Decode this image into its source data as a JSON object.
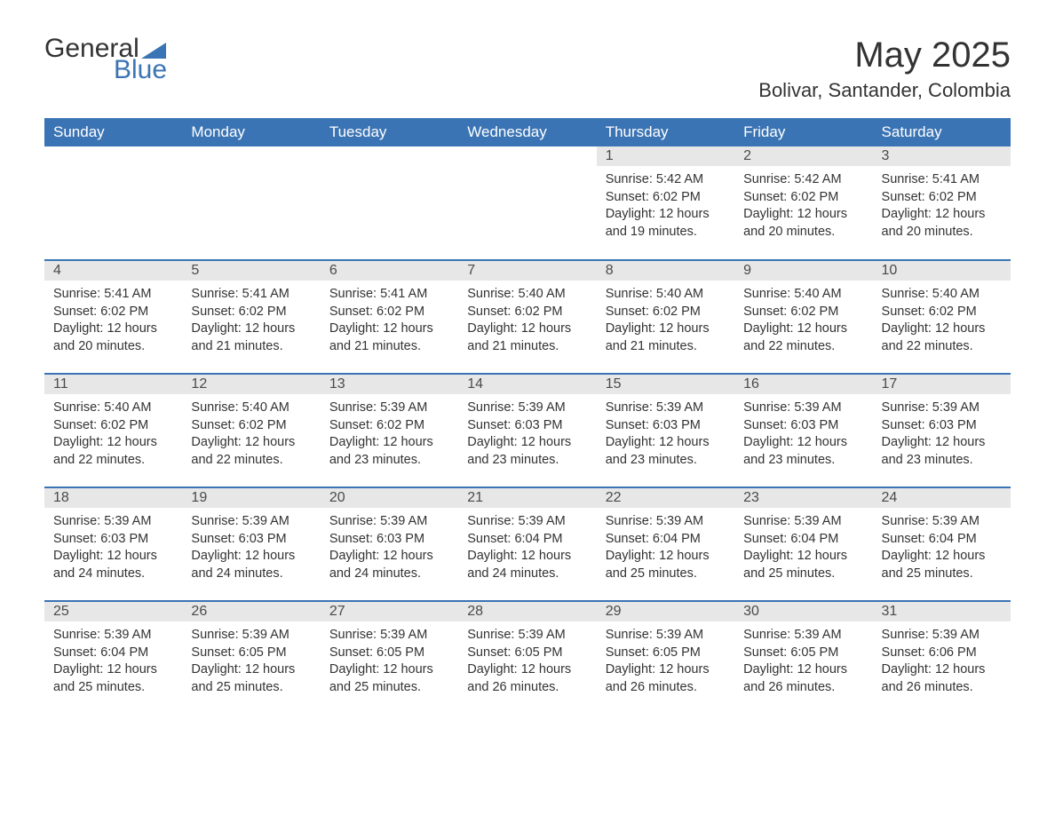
{
  "logo": {
    "part1": "General",
    "part2": "Blue"
  },
  "title": "May 2025",
  "location": "Bolivar, Santander, Colombia",
  "colors": {
    "header_bg": "#3b74b4",
    "header_text": "#ffffff",
    "daynum_bg": "#e7e7e7",
    "body_text": "#333333",
    "rule": "#3b74b4"
  },
  "daysOfWeek": [
    "Sunday",
    "Monday",
    "Tuesday",
    "Wednesday",
    "Thursday",
    "Friday",
    "Saturday"
  ],
  "labels": {
    "sunrise": "Sunrise:",
    "sunset": "Sunset:",
    "daylight": "Daylight:"
  },
  "weeks": [
    [
      null,
      null,
      null,
      null,
      {
        "d": "1",
        "sunrise": "5:42 AM",
        "sunset": "6:02 PM",
        "daylight": "12 hours and 19 minutes."
      },
      {
        "d": "2",
        "sunrise": "5:42 AM",
        "sunset": "6:02 PM",
        "daylight": "12 hours and 20 minutes."
      },
      {
        "d": "3",
        "sunrise": "5:41 AM",
        "sunset": "6:02 PM",
        "daylight": "12 hours and 20 minutes."
      }
    ],
    [
      {
        "d": "4",
        "sunrise": "5:41 AM",
        "sunset": "6:02 PM",
        "daylight": "12 hours and 20 minutes."
      },
      {
        "d": "5",
        "sunrise": "5:41 AM",
        "sunset": "6:02 PM",
        "daylight": "12 hours and 21 minutes."
      },
      {
        "d": "6",
        "sunrise": "5:41 AM",
        "sunset": "6:02 PM",
        "daylight": "12 hours and 21 minutes."
      },
      {
        "d": "7",
        "sunrise": "5:40 AM",
        "sunset": "6:02 PM",
        "daylight": "12 hours and 21 minutes."
      },
      {
        "d": "8",
        "sunrise": "5:40 AM",
        "sunset": "6:02 PM",
        "daylight": "12 hours and 21 minutes."
      },
      {
        "d": "9",
        "sunrise": "5:40 AM",
        "sunset": "6:02 PM",
        "daylight": "12 hours and 22 minutes."
      },
      {
        "d": "10",
        "sunrise": "5:40 AM",
        "sunset": "6:02 PM",
        "daylight": "12 hours and 22 minutes."
      }
    ],
    [
      {
        "d": "11",
        "sunrise": "5:40 AM",
        "sunset": "6:02 PM",
        "daylight": "12 hours and 22 minutes."
      },
      {
        "d": "12",
        "sunrise": "5:40 AM",
        "sunset": "6:02 PM",
        "daylight": "12 hours and 22 minutes."
      },
      {
        "d": "13",
        "sunrise": "5:39 AM",
        "sunset": "6:02 PM",
        "daylight": "12 hours and 23 minutes."
      },
      {
        "d": "14",
        "sunrise": "5:39 AM",
        "sunset": "6:03 PM",
        "daylight": "12 hours and 23 minutes."
      },
      {
        "d": "15",
        "sunrise": "5:39 AM",
        "sunset": "6:03 PM",
        "daylight": "12 hours and 23 minutes."
      },
      {
        "d": "16",
        "sunrise": "5:39 AM",
        "sunset": "6:03 PM",
        "daylight": "12 hours and 23 minutes."
      },
      {
        "d": "17",
        "sunrise": "5:39 AM",
        "sunset": "6:03 PM",
        "daylight": "12 hours and 23 minutes."
      }
    ],
    [
      {
        "d": "18",
        "sunrise": "5:39 AM",
        "sunset": "6:03 PM",
        "daylight": "12 hours and 24 minutes."
      },
      {
        "d": "19",
        "sunrise": "5:39 AM",
        "sunset": "6:03 PM",
        "daylight": "12 hours and 24 minutes."
      },
      {
        "d": "20",
        "sunrise": "5:39 AM",
        "sunset": "6:03 PM",
        "daylight": "12 hours and 24 minutes."
      },
      {
        "d": "21",
        "sunrise": "5:39 AM",
        "sunset": "6:04 PM",
        "daylight": "12 hours and 24 minutes."
      },
      {
        "d": "22",
        "sunrise": "5:39 AM",
        "sunset": "6:04 PM",
        "daylight": "12 hours and 25 minutes."
      },
      {
        "d": "23",
        "sunrise": "5:39 AM",
        "sunset": "6:04 PM",
        "daylight": "12 hours and 25 minutes."
      },
      {
        "d": "24",
        "sunrise": "5:39 AM",
        "sunset": "6:04 PM",
        "daylight": "12 hours and 25 minutes."
      }
    ],
    [
      {
        "d": "25",
        "sunrise": "5:39 AM",
        "sunset": "6:04 PM",
        "daylight": "12 hours and 25 minutes."
      },
      {
        "d": "26",
        "sunrise": "5:39 AM",
        "sunset": "6:05 PM",
        "daylight": "12 hours and 25 minutes."
      },
      {
        "d": "27",
        "sunrise": "5:39 AM",
        "sunset": "6:05 PM",
        "daylight": "12 hours and 25 minutes."
      },
      {
        "d": "28",
        "sunrise": "5:39 AM",
        "sunset": "6:05 PM",
        "daylight": "12 hours and 26 minutes."
      },
      {
        "d": "29",
        "sunrise": "5:39 AM",
        "sunset": "6:05 PM",
        "daylight": "12 hours and 26 minutes."
      },
      {
        "d": "30",
        "sunrise": "5:39 AM",
        "sunset": "6:05 PM",
        "daylight": "12 hours and 26 minutes."
      },
      {
        "d": "31",
        "sunrise": "5:39 AM",
        "sunset": "6:06 PM",
        "daylight": "12 hours and 26 minutes."
      }
    ]
  ]
}
